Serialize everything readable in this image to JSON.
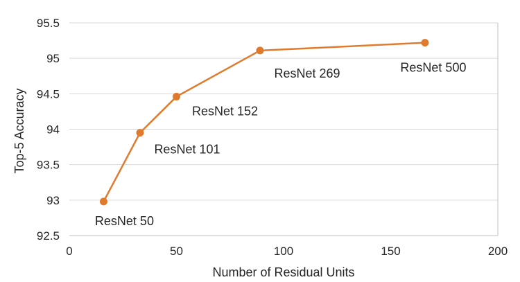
{
  "chart_data": {
    "type": "line",
    "xlabel": "Number of Residual Units",
    "ylabel": "Top-5 Accuracy",
    "xlim": [
      0,
      200
    ],
    "ylim": [
      92.5,
      95.5
    ],
    "x_ticks": [
      0,
      50,
      100,
      150,
      200
    ],
    "y_ticks": [
      92.5,
      93,
      93.5,
      94,
      94.5,
      95,
      95.5
    ],
    "x_tick_labels": [
      "0",
      "50",
      "100",
      "150",
      "200"
    ],
    "y_tick_labels": [
      "92.5",
      "93",
      "93.5",
      "94",
      "94.5",
      "95",
      "95.5"
    ],
    "grid": "horizontal",
    "series": [
      {
        "color": "#e07b2e",
        "x": [
          16,
          33,
          50,
          89,
          166
        ],
        "y": [
          92.98,
          93.95,
          94.46,
          95.11,
          95.22
        ],
        "labels": [
          "ResNet 50",
          "ResNet 101",
          "ResNet 152",
          "ResNet 269",
          "ResNet 500"
        ]
      }
    ]
  }
}
